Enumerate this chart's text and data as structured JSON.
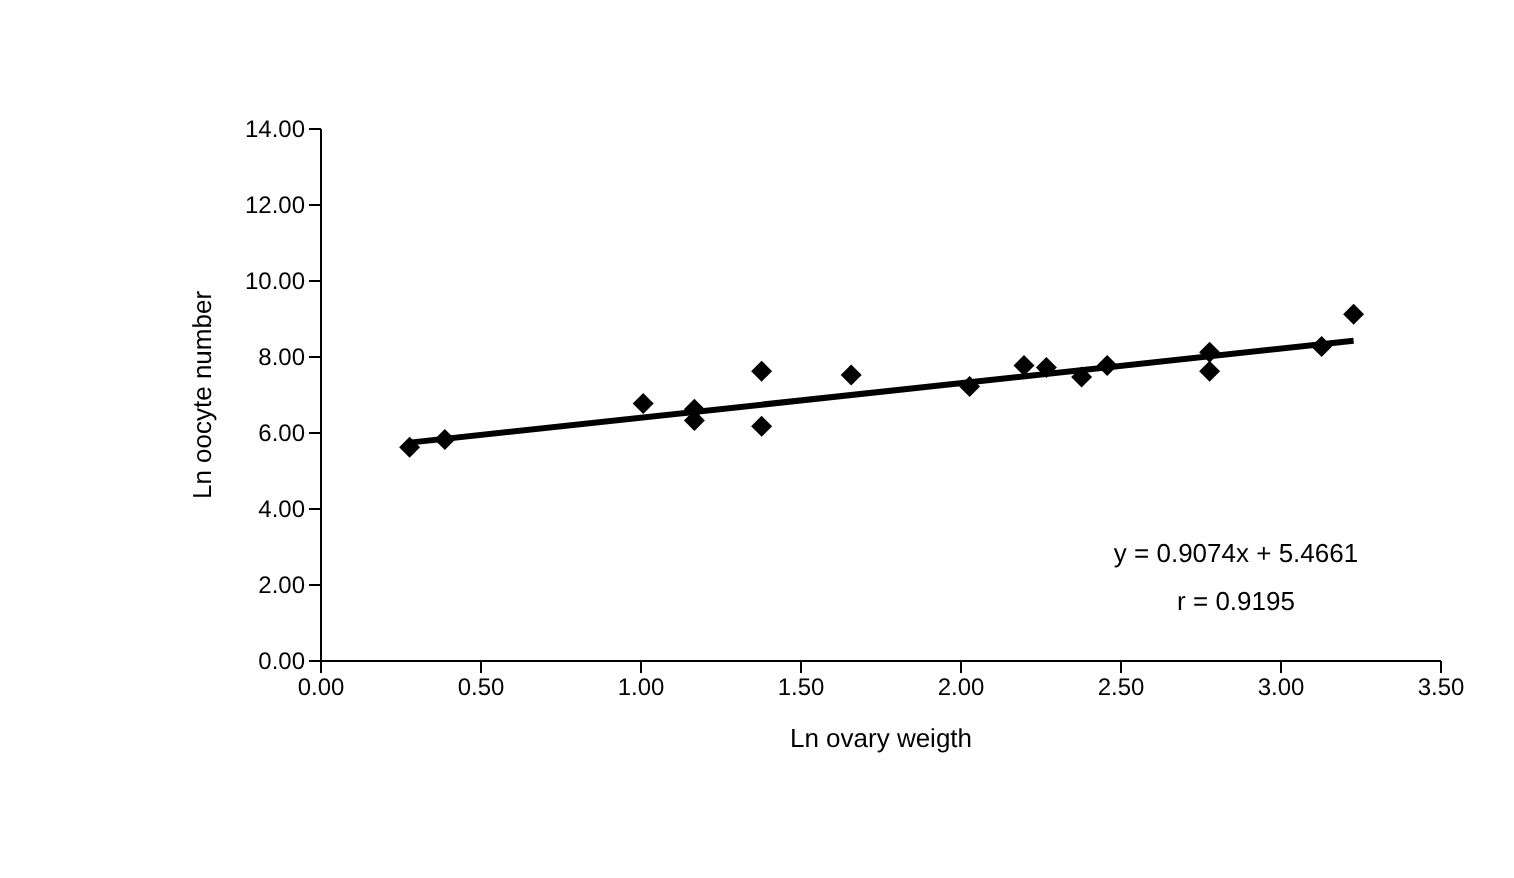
{
  "chart_data": {
    "type": "scatter",
    "xlabel": "Ln ovary weigth",
    "ylabel": "Ln oocyte number",
    "marker": "diamond",
    "grid": false,
    "legend": false,
    "xlim": [
      0,
      3.5
    ],
    "ylim": [
      0,
      14
    ],
    "xticks": [
      {
        "value": 0,
        "label": "0.00"
      },
      {
        "value": 0.5,
        "label": "0.50"
      },
      {
        "value": 1,
        "label": "1.00"
      },
      {
        "value": 1.5,
        "label": "1.50"
      },
      {
        "value": 2,
        "label": "2.00"
      },
      {
        "value": 2.5,
        "label": "2.50"
      },
      {
        "value": 3,
        "label": "3.00"
      },
      {
        "value": 3.5,
        "label": "3.50"
      }
    ],
    "yticks": [
      {
        "value": 0,
        "label": "0.00"
      },
      {
        "value": 2,
        "label": "2.00"
      },
      {
        "value": 4,
        "label": "4.00"
      },
      {
        "value": 6,
        "label": "6.00"
      },
      {
        "value": 8,
        "label": "8.00"
      },
      {
        "value": 10,
        "label": "10.00"
      },
      {
        "value": 12,
        "label": "12.00"
      },
      {
        "value": 14,
        "label": "14.00"
      }
    ],
    "series": [
      {
        "type": "scatter",
        "color": "#000000",
        "x": [
          0.28,
          0.39,
          1.01,
          1.17,
          1.17,
          1.38,
          1.38,
          1.66,
          2.03,
          2.2,
          2.27,
          2.38,
          2.46,
          2.78,
          2.78,
          3.13,
          3.23
        ],
        "values": [
          5.6,
          5.8,
          6.75,
          6.3,
          6.6,
          6.15,
          7.6,
          7.5,
          7.2,
          7.75,
          7.7,
          7.45,
          7.75,
          8.1,
          7.6,
          8.25,
          9.1
        ]
      },
      {
        "type": "line",
        "color": "#000000",
        "line_style": "solid",
        "marker": "none",
        "x": [
          0.28,
          3.23
        ],
        "values": [
          5.72,
          8.4
        ]
      }
    ],
    "annotations": [
      {
        "text": "y = 0.9074x + 5.4661"
      },
      {
        "text": "r = 0.9195"
      }
    ]
  }
}
